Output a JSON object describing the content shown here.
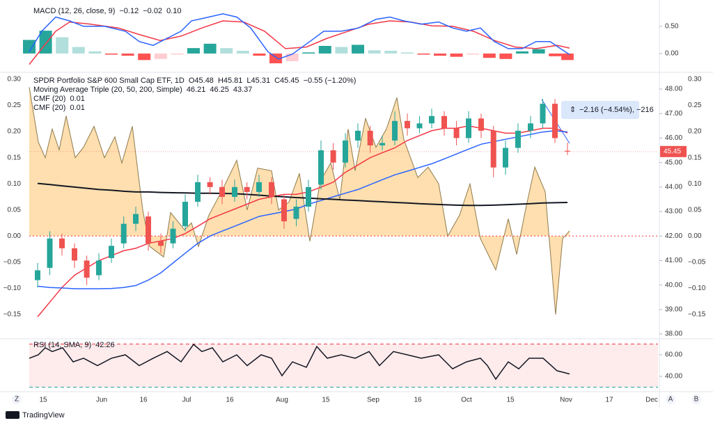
{
  "chart_data": [
    {
      "type": "macd",
      "title": "MACD (12, 26, close, 9)",
      "legend_values": [
        "−0.12",
        "−0.02",
        "0.10"
      ],
      "legend_colors": [
        "#f23645",
        "#2962ff",
        "#f23645"
      ],
      "histogram": {
        "x": [
          0,
          23.6,
          47.2,
          70.8,
          94.4,
          118,
          141.6,
          165.2,
          188.8,
          212.4,
          236,
          259.6,
          283.2,
          306.8,
          330.4,
          354,
          377.6,
          401.2,
          424.8,
          448.4,
          472,
          495.6,
          519.2,
          542.8,
          566.4,
          590,
          613.6,
          637.2,
          660.8,
          684.4,
          708,
          731.6,
          755.2,
          773
        ],
        "values": [
          0.25,
          0.42,
          0.3,
          0.12,
          0.04,
          -0.02,
          -0.04,
          -0.12,
          -0.1,
          -0.02,
          0.1,
          0.18,
          0.1,
          0.05,
          -0.04,
          -0.18,
          -0.14,
          0.02,
          0.14,
          0.12,
          0.16,
          0.06,
          0.05,
          0.02,
          -0.02,
          -0.04,
          -0.06,
          -0.02,
          -0.08,
          -0.1,
          0.04,
          0.08,
          -0.05,
          -0.12
        ],
        "colors": {
          "up_rising": "#26a69a",
          "up_falling": "#b2dfdb",
          "down_falling": "#ff5252",
          "down_rising": "#ffcdd2"
        }
      },
      "macd": {
        "color": "#2962ff",
        "x": [
          0,
          18,
          38,
          58,
          78,
          108,
          138,
          158,
          178,
          198,
          218,
          233,
          258,
          278,
          298,
          318,
          343,
          358,
          378,
          403,
          423,
          448,
          473,
          498,
          518,
          538,
          563,
          588,
          608,
          628,
          648,
          668,
          688,
          708,
          728,
          748,
          763,
          776
        ],
        "values": [
          0.03,
          0.41,
          0.67,
          0.6,
          0.5,
          0.5,
          0.41,
          0.22,
          0.15,
          0.28,
          0.41,
          0.6,
          0.67,
          0.73,
          0.67,
          0.47,
          0.03,
          -0.1,
          -0.01,
          0.22,
          0.41,
          0.41,
          0.47,
          0.63,
          0.67,
          0.6,
          0.54,
          0.58,
          0.47,
          0.41,
          0.47,
          0.22,
          0.09,
          0.09,
          0.22,
          0.22,
          0.09,
          -0.02
        ]
      },
      "signal": {
        "color": "#f23645",
        "x": [
          0,
          18,
          38,
          58,
          88,
          128,
          158,
          188,
          218,
          248,
          278,
          308,
          338,
          368,
          398,
          428,
          458,
          488,
          518,
          548,
          578,
          608,
          638,
          668,
          698,
          728,
          758,
          776
        ],
        "values": [
          -0.2,
          0.09,
          0.41,
          0.58,
          0.54,
          0.47,
          0.35,
          0.24,
          0.32,
          0.47,
          0.6,
          0.58,
          0.41,
          0.09,
          0.12,
          0.28,
          0.41,
          0.54,
          0.6,
          0.58,
          0.51,
          0.5,
          0.41,
          0.24,
          0.12,
          0.09,
          0.15,
          0.1
        ]
      },
      "ylim": [
        -0.295,
        0.92
      ],
      "yticks": [
        {
          "value": 0,
          "label": "0.00"
        },
        {
          "value": 0.5,
          "label": "0.50"
        }
      ]
    },
    {
      "type": "candlestick",
      "title": "SPDR Portfolio S&P 600 Small Cap ETF, 1D",
      "ohlc_labels": [
        "O45.48",
        "H45.81",
        "L45.31",
        "C45.45"
      ],
      "change_label": "−0.55 (−1.20%)",
      "legend_color": "#f23645",
      "up_color": "#26a69a",
      "down_color": "#ef5350",
      "x": [
        12,
        29.5,
        47,
        65,
        82.6,
        100,
        118,
        135.7,
        153,
        171,
        189,
        206.5,
        224,
        242,
        259.6,
        277,
        295,
        312.7,
        330,
        348,
        366,
        383.5,
        401,
        419,
        436.6,
        454,
        472,
        489.7,
        507,
        525,
        543,
        560.5,
        578,
        596,
        613.6,
        631,
        649,
        666.7,
        684,
        702,
        720,
        737.5,
        755,
        773
      ],
      "open": [
        40.2,
        40.7,
        41.9,
        41.5,
        41.0,
        40.4,
        41.1,
        41.7,
        42.5,
        42.8,
        41.8,
        41.7,
        42.4,
        43.4,
        44.2,
        44.0,
        43.6,
        44.0,
        43.8,
        44.2,
        43.5,
        42.7,
        43.2,
        44.1,
        45.5,
        45.0,
        45.9,
        46.3,
        45.7,
        45.9,
        46.7,
        46.4,
        46.6,
        46.9,
        46.4,
        46.0,
        46.8,
        46.3,
        44.8,
        45.6,
        46.3,
        46.6,
        47.4,
        45.48
      ],
      "high": [
        40.9,
        42.2,
        42.1,
        41.7,
        41.2,
        41.3,
        41.9,
        42.8,
        43.2,
        43.0,
        42.1,
        42.6,
        43.7,
        44.5,
        44.4,
        44.3,
        44.3,
        44.2,
        44.5,
        44.4,
        43.7,
        43.5,
        44.3,
        45.9,
        45.8,
        46.2,
        46.6,
        46.5,
        46.1,
        47.1,
        47.0,
        46.9,
        47.2,
        47.1,
        46.7,
        47.1,
        47.0,
        46.5,
        45.9,
        46.6,
        46.9,
        47.6,
        47.6,
        45.81
      ],
      "low": [
        39.9,
        40.4,
        41.2,
        40.7,
        40.0,
        40.2,
        40.9,
        41.5,
        42.2,
        41.4,
        41.3,
        41.5,
        42.2,
        43.2,
        43.7,
        43.3,
        43.4,
        43.5,
        43.6,
        43.3,
        42.3,
        42.4,
        43.0,
        43.9,
        44.7,
        44.8,
        45.6,
        45.4,
        45.5,
        45.7,
        46.1,
        46.2,
        46.4,
        46.1,
        45.7,
        45.8,
        46.0,
        44.4,
        44.5,
        45.4,
        46.0,
        46.4,
        45.8,
        45.31
      ],
      "close": [
        40.6,
        41.9,
        41.5,
        41.0,
        40.3,
        41.0,
        41.6,
        42.5,
        42.9,
        41.7,
        41.6,
        42.3,
        43.4,
        44.2,
        44.0,
        43.6,
        44.0,
        43.8,
        44.2,
        43.6,
        42.6,
        43.2,
        44.0,
        45.5,
        45.0,
        45.9,
        46.3,
        45.7,
        45.8,
        46.7,
        46.4,
        46.6,
        46.9,
        46.4,
        46.0,
        46.8,
        46.3,
        44.8,
        45.6,
        46.3,
        46.6,
        47.4,
        46.0,
        45.45
      ],
      "ma": {
        "title": "Moving Average Triple (20, 50, 200, Simple)",
        "values": [
          "46.21",
          "46.25",
          "43.37"
        ],
        "lines": [
          {
            "color": "#f23645",
            "values": [
              38.7,
              39.3,
              39.9,
              40.4,
              40.7,
              41.0,
              41.2,
              41.4,
              41.5,
              41.7,
              41.8,
              41.9,
              42.1,
              42.4,
              42.7,
              42.9,
              43.1,
              43.3,
              43.5,
              43.6,
              43.7,
              43.7,
              43.8,
              44.0,
              44.2,
              44.6,
              44.9,
              45.2,
              45.4,
              45.6,
              45.9,
              46.1,
              46.3,
              46.4,
              46.4,
              46.5,
              46.4,
              46.3,
              46.2,
              46.2,
              46.3,
              46.4,
              46.4,
              46.21
            ]
          },
          {
            "color": "#2962ff",
            "values": [
              39.95,
              39.9,
              39.88,
              39.85,
              39.85,
              39.85,
              39.86,
              39.9,
              39.98,
              40.2,
              40.5,
              40.9,
              41.3,
              41.7,
              42.0,
              42.2,
              42.4,
              42.6,
              42.8,
              42.9,
              43.0,
              43.1,
              43.3,
              43.45,
              43.6,
              43.75,
              43.9,
              44.1,
              44.3,
              44.5,
              44.65,
              44.8,
              44.95,
              45.15,
              45.35,
              45.55,
              45.75,
              45.85,
              45.95,
              46.05,
              46.15,
              46.25,
              46.3,
              46.25
            ]
          },
          {
            "color": "#131722",
            "values": [
              44.15,
              44.1,
              44.05,
              44.0,
              43.95,
              43.9,
              43.87,
              43.83,
              43.8,
              43.8,
              43.78,
              43.77,
              43.76,
              43.75,
              43.75,
              43.74,
              43.73,
              43.7,
              43.67,
              43.63,
              43.6,
              43.57,
              43.55,
              43.52,
              43.5,
              43.47,
              43.45,
              43.42,
              43.4,
              43.37,
              43.35,
              43.32,
              43.3,
              43.28,
              43.26,
              43.25,
              43.25,
              43.26,
              43.28,
              43.3,
              43.32,
              43.35,
              43.36,
              43.37
            ]
          }
        ]
      },
      "cmf": {
        "legends": [
          {
            "title": "CMF (20)",
            "value": "0.01",
            "color": "#ff9800"
          },
          {
            "title": "CMF (20)",
            "value": "0.01",
            "color": "#131722"
          }
        ],
        "fill": "rgba(255,183,77,0.45)",
        "stroke": "#8d7a4b",
        "zero_line_color": "#f23645",
        "x": [
          0,
          13,
          23,
          33,
          43,
          53,
          66,
          78,
          93,
          108,
          123,
          133,
          148,
          163,
          173,
          193,
          203,
          223,
          233,
          243,
          258,
          278,
          298,
          313,
          328,
          348,
          358,
          373,
          388,
          403,
          418,
          433,
          446,
          458,
          468,
          483,
          498,
          513,
          528,
          538,
          558,
          573,
          588,
          601,
          618,
          633,
          648,
          670,
          688,
          700,
          713,
          726,
          741,
          756,
          766,
          776
        ],
        "values": [
          0.285,
          0.18,
          0.15,
          0.205,
          0.165,
          0.23,
          0.15,
          0.17,
          0.21,
          0.15,
          0.19,
          0.14,
          0.21,
          0.05,
          -0.02,
          -0.04,
          0.045,
          0.012,
          0.025,
          -0.02,
          0.04,
          0.09,
          0.145,
          0.05,
          0.13,
          0.125,
          0.05,
          0.065,
          0.12,
          -0.01,
          0.105,
          0.14,
          0.07,
          0.205,
          0.125,
          0.225,
          0.17,
          0.205,
          0.265,
          0.185,
          0.112,
          0.132,
          0.1,
          0.0,
          0.04,
          0.1,
          -0.005,
          -0.065,
          0.033,
          -0.035,
          0.052,
          0.132,
          0.085,
          -0.15,
          -0.005,
          0.01
        ],
        "ylim": [
          -0.194,
          0.308
        ],
        "yticks": [
          {
            "value": 0.3,
            "label": "0.30"
          },
          {
            "value": 0.25,
            "label": "0.25"
          },
          {
            "value": 0.2,
            "label": "0.20"
          },
          {
            "value": 0.15,
            "label": "0.15"
          },
          {
            "value": 0.1,
            "label": "0.10"
          },
          {
            "value": 0.05,
            "label": "0.05"
          },
          {
            "value": 0,
            "label": "0.00"
          },
          {
            "value": -0.05,
            "label": "−0.05"
          },
          {
            "value": -0.1,
            "label": "−0.10"
          },
          {
            "value": -0.15,
            "label": "−0.15"
          }
        ]
      },
      "xlim": [
        0,
        903
      ],
      "xticks": [
        {
          "value": 20,
          "label": "15"
        },
        {
          "value": 104,
          "label": "Jun"
        },
        {
          "value": 164,
          "label": "16"
        },
        {
          "value": 226,
          "label": "Jul"
        },
        {
          "value": 288,
          "label": "16"
        },
        {
          "value": 363,
          "label": "Aug"
        },
        {
          "value": 426,
          "label": "15"
        },
        {
          "value": 494,
          "label": "Sep"
        },
        {
          "value": 558,
          "label": "16"
        },
        {
          "value": 628,
          "label": "Oct"
        },
        {
          "value": 691,
          "label": "15"
        },
        {
          "value": 771,
          "label": "Nov"
        },
        {
          "value": 833,
          "label": "17"
        },
        {
          "value": 894,
          "label": "Dec"
        }
      ],
      "ylim": [
        37.86,
        48.57
      ],
      "yticks": [
        {
          "value": 38,
          "label": "38.00"
        },
        {
          "value": 39,
          "label": "39.00"
        },
        {
          "value": 40,
          "label": "40.00"
        },
        {
          "value": 41,
          "label": "41.00"
        },
        {
          "value": 42,
          "label": "42.00"
        },
        {
          "value": 43,
          "label": "43.00"
        },
        {
          "value": 44,
          "label": "44.00"
        },
        {
          "value": 45,
          "label": "45.00"
        },
        {
          "value": 46,
          "label": "46.00"
        },
        {
          "value": 47,
          "label": "47.00"
        },
        {
          "value": 48,
          "label": "48.00"
        }
      ]
    },
    {
      "type": "line",
      "title": "RSI (14, SMA, 9)",
      "legend_value": "42.26",
      "color": "#131722",
      "bands": [
        30,
        70
      ],
      "band_fill": "rgba(242,54,69,0.1)",
      "band_colors": [
        "#22a39a",
        "#f23645"
      ],
      "x": [
        0,
        13,
        23,
        33,
        48,
        63,
        78,
        98,
        118,
        138,
        158,
        178,
        198,
        218,
        236,
        248,
        263,
        278,
        298,
        313,
        333,
        348,
        363,
        378,
        398,
        413,
        428,
        448,
        468,
        488,
        503,
        523,
        543,
        563,
        588,
        608,
        628,
        648,
        658,
        670,
        688,
        703,
        718,
        738,
        758,
        776
      ],
      "values": [
        56.8,
        60,
        66.5,
        63,
        66.5,
        53.5,
        56.8,
        50,
        56.8,
        60,
        50,
        56.8,
        63,
        53.5,
        69.7,
        63,
        66.5,
        53.5,
        60,
        50,
        60,
        56.8,
        40.6,
        53.5,
        48.4,
        67.7,
        56.8,
        60,
        56.8,
        63,
        50,
        63,
        60,
        56.8,
        60,
        47,
        53.5,
        56.8,
        50,
        37.4,
        53.5,
        47,
        56.8,
        56.8,
        45.2,
        42.26
      ],
      "ylim": [
        27.7,
        74.2
      ],
      "yticks": [
        {
          "value": 40,
          "label": "40.00"
        },
        {
          "value": 60,
          "label": "60.00"
        }
      ]
    }
  ],
  "ui": {
    "price_tag": "45.45",
    "measure": "−2.16 (−4.54%), −216",
    "logo": "TradingView",
    "buttons": {
      "left": "Z",
      "right": [
        "A",
        "B"
      ]
    }
  }
}
